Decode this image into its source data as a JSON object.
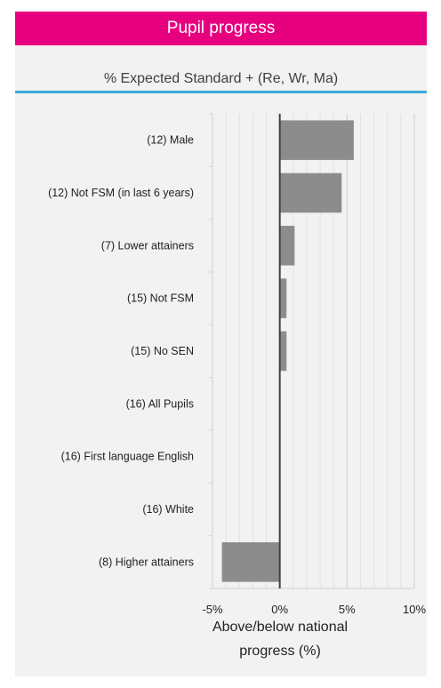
{
  "header": {
    "title": "Pupil progress"
  },
  "subtitle": "% Expected Standard + (Re, Wr, Ma)",
  "colors": {
    "header_bg": "#e6007e",
    "accent_rule": "#3fa9d9",
    "bar": "#8c8c8c",
    "panel_bg": "#f2f2f2"
  },
  "chart_data": {
    "type": "bar",
    "orientation": "horizontal",
    "categories": [
      "(12) Male",
      "(12) Not FSM (in last 6 years)",
      "(7) Lower attainers",
      "(15) Not FSM",
      "(15) No SEN",
      "(16) All Pupils",
      "(16) First language English",
      "(16) White",
      "(8) Higher attainers"
    ],
    "values": [
      5.5,
      4.6,
      1.1,
      0.5,
      0.5,
      0,
      0,
      0,
      -4.3
    ],
    "xlim": [
      -5,
      10
    ],
    "xticks": [
      -5,
      0,
      5,
      10
    ],
    "xtick_labels": [
      "-5%",
      "0%",
      "5%",
      "10%"
    ],
    "xlabel": "Above/below national progress (%)",
    "grid": true
  }
}
